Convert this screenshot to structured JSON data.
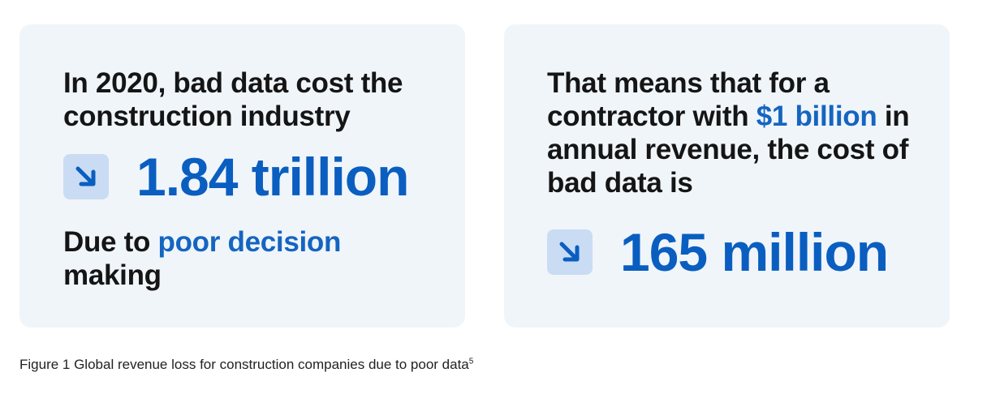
{
  "left_card": {
    "statement": "In 2020, bad data cost the construction industry",
    "metric_value": "1.84 trillion",
    "reason_prefix": "Due to ",
    "reason_highlight": "poor decision",
    "reason_suffix": " making"
  },
  "right_card": {
    "statement_part1": "That means that for a contractor with ",
    "statement_highlight": "$1 billion",
    "statement_part2": " in annual revenue, the cost of bad data is",
    "metric_value": "165 million"
  },
  "caption": {
    "text": "Figure 1 Global revenue loss for construction companies due to poor data",
    "footnote": "5"
  },
  "colors": {
    "card_background": "#f0f5fa",
    "accent_blue": "#0a5ec0",
    "highlight_blue": "#1565c0",
    "arrow_box": "#c9dcf3"
  },
  "icons": {
    "metric_icon": "arrow-down-right-icon"
  }
}
